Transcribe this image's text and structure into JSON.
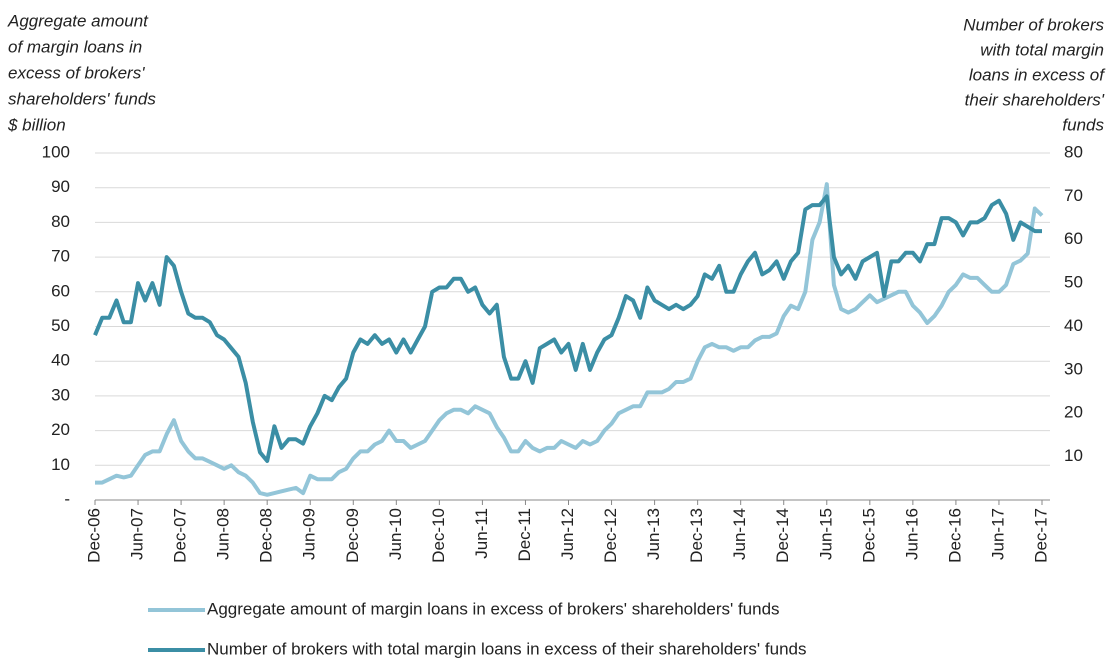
{
  "chart_data": {
    "type": "line",
    "y_label": [
      "Aggregate amount",
      "of margin loans in",
      "excess of brokers'",
      "shareholders' funds",
      "$ billion"
    ],
    "y2_label": [
      "Number of brokers",
      "with total margin",
      "loans in excess of",
      "their shareholders'",
      "funds"
    ],
    "categories": [
      "Dec-06",
      null,
      null,
      null,
      null,
      null,
      "Jun-07",
      null,
      null,
      null,
      null,
      null,
      "Dec-07",
      null,
      null,
      null,
      null,
      null,
      "Jun-08",
      null,
      null,
      null,
      null,
      null,
      "Dec-08",
      null,
      null,
      null,
      null,
      null,
      "Jun-09",
      null,
      null,
      null,
      null,
      null,
      "Dec-09",
      null,
      null,
      null,
      null,
      null,
      "Jun-10",
      null,
      null,
      null,
      null,
      null,
      "Dec-10",
      null,
      null,
      null,
      null,
      null,
      "Jun-11",
      null,
      null,
      null,
      null,
      null,
      "Dec-11",
      null,
      null,
      null,
      null,
      null,
      "Jun-12",
      null,
      null,
      null,
      null,
      null,
      "Dec-12",
      null,
      null,
      null,
      null,
      null,
      "Jun-13",
      null,
      null,
      null,
      null,
      null,
      "Dec-13",
      null,
      null,
      null,
      null,
      null,
      "Jun-14",
      null,
      null,
      null,
      null,
      null,
      "Dec-14",
      null,
      null,
      null,
      null,
      null,
      "Jun-15",
      null,
      null,
      null,
      null,
      null,
      "Dec-15",
      null,
      null,
      null,
      null,
      null,
      "Jun-16",
      null,
      null,
      null,
      null,
      null,
      "Dec-16",
      null,
      null,
      null,
      null,
      null,
      "Jun-17",
      null,
      null,
      null,
      null,
      null,
      "Dec-17"
    ],
    "series": [
      {
        "name": "Aggregate amount of margin loans in excess of brokers' shareholders' funds",
        "color": "#93c5d8",
        "values": [
          5,
          5,
          6,
          7,
          6.5,
          7,
          10,
          13,
          14,
          14,
          19,
          23,
          17,
          14,
          12,
          12,
          11,
          10,
          9,
          10,
          8,
          7,
          5,
          2,
          1.5,
          2,
          2.5,
          3,
          3.5,
          2,
          7,
          6,
          6,
          6,
          8,
          9,
          12,
          14,
          14,
          16,
          17,
          20,
          17,
          17,
          15,
          16,
          17,
          20,
          23,
          25,
          26,
          26,
          25,
          27,
          26,
          25,
          21,
          18,
          14,
          14,
          17,
          15,
          14,
          15,
          15,
          17,
          16,
          15,
          17,
          16,
          17,
          20,
          22,
          25,
          26,
          27,
          27,
          31,
          31,
          31,
          32,
          34,
          34,
          35,
          40,
          44,
          45,
          44,
          44,
          43,
          44,
          44,
          46,
          47,
          47,
          48,
          53,
          56,
          55,
          60,
          75,
          80,
          91,
          62,
          55,
          54,
          55,
          57,
          59,
          57,
          58,
          59,
          60,
          60,
          56,
          54,
          51,
          53,
          56,
          60,
          62,
          65,
          64,
          64,
          62,
          60,
          60,
          62,
          68,
          69,
          71,
          84,
          82
        ]
      },
      {
        "name": "Number of brokers with total margin loans in excess of their shareholders' funds",
        "color": "#3b8ea5",
        "axis": "y2",
        "values": [
          38,
          42,
          42,
          46,
          41,
          41,
          50,
          46,
          50,
          45,
          56,
          54,
          48,
          43,
          42,
          42,
          41,
          38,
          37,
          35,
          33,
          27,
          18,
          11,
          9,
          17,
          12,
          14,
          14,
          13,
          17,
          20,
          24,
          23,
          26,
          28,
          34,
          37,
          36,
          38,
          36,
          37,
          34,
          37,
          34,
          37,
          40,
          48,
          49,
          49,
          51,
          51,
          48,
          49,
          45,
          43,
          45,
          33,
          28,
          28,
          32,
          27,
          35,
          36,
          37,
          34,
          36,
          30,
          36,
          30,
          34,
          37,
          38,
          42,
          47,
          46,
          42,
          49,
          46,
          45,
          44,
          45,
          44,
          45,
          47,
          52,
          51,
          54,
          48,
          48,
          52,
          55,
          57,
          52,
          53,
          55,
          51,
          55,
          57,
          67,
          68,
          68,
          70,
          56,
          52,
          54,
          51,
          55,
          56,
          57,
          47,
          55,
          55,
          57,
          57,
          55,
          59,
          59,
          65,
          65,
          64,
          61,
          64,
          64,
          65,
          68,
          69,
          66,
          60,
          64,
          63,
          62,
          62
        ]
      }
    ],
    "ylim": [
      0,
      100
    ],
    "yticks": [
      {
        "value": 0,
        "label": "-"
      },
      10,
      20,
      30,
      40,
      50,
      60,
      70,
      80,
      90,
      100
    ],
    "y2lim": [
      0,
      80
    ],
    "y2ticks": [
      10,
      20,
      30,
      40,
      50,
      60,
      70,
      80
    ],
    "grid": true,
    "legend": "bottom"
  }
}
